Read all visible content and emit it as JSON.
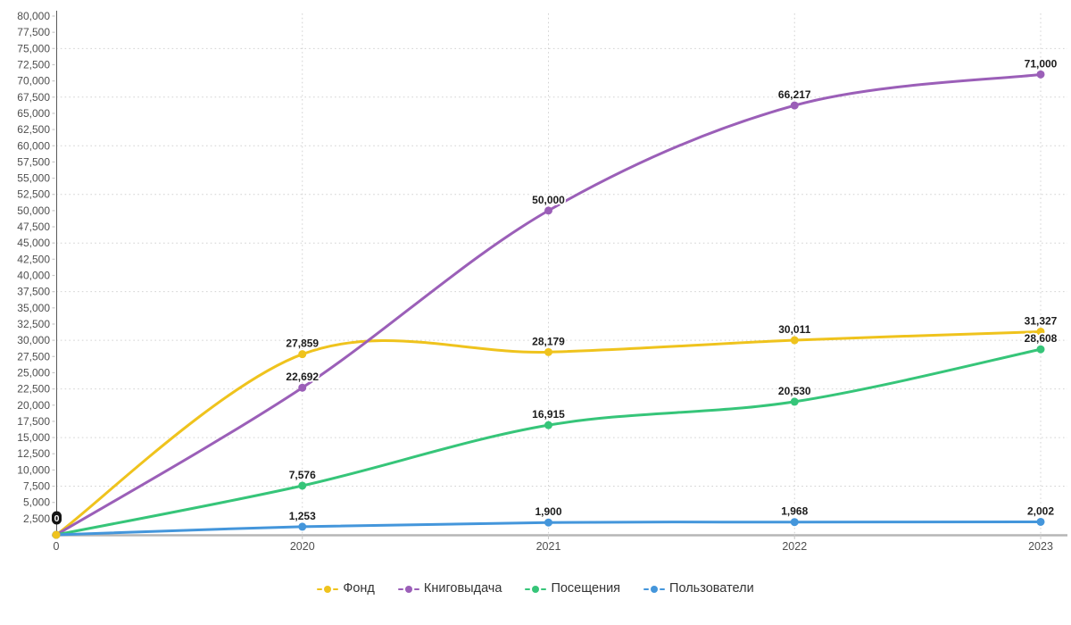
{
  "chart_data": {
    "type": "line",
    "title": "",
    "xlabel": "",
    "ylabel": "",
    "x_categories": [
      "0",
      "2020",
      "2021",
      "2022",
      "2023"
    ],
    "series": [
      {
        "name": "Фонд",
        "color": "#EFC31D",
        "values": [
          0,
          27859,
          28179,
          30011,
          31327
        ]
      },
      {
        "name": "Книговыдача",
        "color": "#9B5FB8",
        "values": [
          0,
          22692,
          50000,
          66217,
          71000
        ]
      },
      {
        "name": "Посещения",
        "color": "#36C579",
        "values": [
          0,
          7576,
          16915,
          20530,
          28608
        ]
      },
      {
        "name": "Пользователи",
        "color": "#4496DB",
        "values": [
          0,
          1253,
          1900,
          1968,
          2002
        ]
      }
    ],
    "ylim": [
      0,
      80000
    ],
    "y_label_step": 2500,
    "y_grid_step": 7500,
    "grid": "dotted",
    "smooth": true,
    "legend_position": "bottom",
    "origin_badge_label": "0",
    "number_format": "thousands-comma"
  },
  "colors": {
    "y_axis_line": "#5a5a5a",
    "x_axis_line": "#b6b6b6",
    "grid_line": "#d2d2d2",
    "tick_mark": "#c9c9c9",
    "axis_label": "#4f4f4f",
    "data_label": "#1c1c1c",
    "origin_badge_bg": "#141414",
    "origin_badge_text": "#ffffff",
    "legend_text": "#333333"
  }
}
